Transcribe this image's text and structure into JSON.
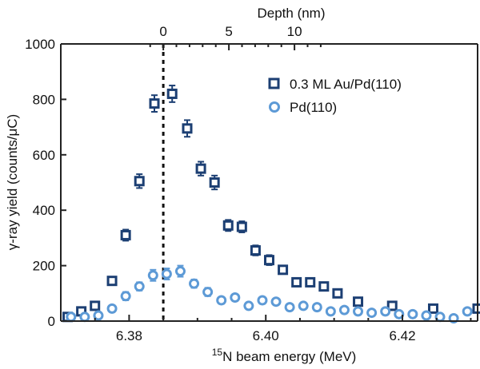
{
  "chart_data": {
    "type": "scatter",
    "xlabel_prefix": "15",
    "xlabel_main": "N beam energy (MeV)",
    "ylabel": "γ-ray yield (counts/μC)",
    "top_axis_label": "Depth (nm)",
    "xlim": [
      6.37,
      6.431
    ],
    "ylim": [
      0,
      1000
    ],
    "x_ticks": [
      6.38,
      6.4,
      6.42
    ],
    "x_tick_labels": [
      "6.38",
      "6.40",
      "6.42"
    ],
    "y_ticks": [
      0,
      200,
      400,
      600,
      800,
      1000
    ],
    "y_tick_labels": [
      "0",
      "200",
      "400",
      "600",
      "800",
      "1000"
    ],
    "top_ticks_energy": [
      6.385,
      6.3946,
      6.4042
    ],
    "top_tick_labels": [
      "0",
      "5",
      "10"
    ],
    "zero_depth_energy": 6.385,
    "series": [
      {
        "name": "0.3 ML Au/Pd(110)",
        "marker": "square",
        "color": "#1c3f73",
        "x": [
          6.371,
          6.373,
          6.375,
          6.3775,
          6.3795,
          6.3815,
          6.3837,
          6.3863,
          6.3885,
          6.3905,
          6.3925,
          6.3945,
          6.3965,
          6.3985,
          6.4005,
          6.4025,
          6.4045,
          6.4065,
          6.4085,
          6.4105,
          6.4135,
          6.4185,
          6.4245,
          6.431
        ],
        "y": [
          15,
          35,
          55,
          145,
          310,
          505,
          785,
          820,
          695,
          550,
          500,
          345,
          340,
          255,
          220,
          185,
          140,
          140,
          125,
          100,
          70,
          55,
          45,
          45
        ],
        "err": [
          10,
          12,
          12,
          15,
          20,
          25,
          30,
          30,
          30,
          25,
          25,
          20,
          20,
          18,
          18,
          15,
          12,
          12,
          12,
          12,
          10,
          10,
          10,
          10
        ]
      },
      {
        "name": "Pd(110)",
        "marker": "circle",
        "color": "#5d9ad6",
        "x": [
          6.3715,
          6.3735,
          6.3755,
          6.3775,
          6.3795,
          6.3815,
          6.3835,
          6.3855,
          6.3875,
          6.3895,
          6.3915,
          6.3935,
          6.3955,
          6.3975,
          6.3995,
          6.4015,
          6.4035,
          6.4055,
          6.4075,
          6.4095,
          6.4115,
          6.4135,
          6.4155,
          6.4175,
          6.4195,
          6.4215,
          6.4235,
          6.4255,
          6.4275,
          6.4295
        ],
        "y": [
          15,
          15,
          20,
          45,
          90,
          125,
          165,
          170,
          180,
          135,
          105,
          75,
          85,
          55,
          75,
          70,
          50,
          55,
          50,
          35,
          40,
          35,
          30,
          35,
          25,
          25,
          20,
          15,
          10,
          35
        ],
        "err": [
          10,
          10,
          10,
          12,
          15,
          15,
          20,
          20,
          20,
          15,
          15,
          12,
          12,
          10,
          12,
          12,
          10,
          10,
          10,
          10,
          10,
          10,
          10,
          10,
          10,
          10,
          10,
          10,
          10,
          10
        ]
      }
    ],
    "legend_position": "top-right"
  }
}
